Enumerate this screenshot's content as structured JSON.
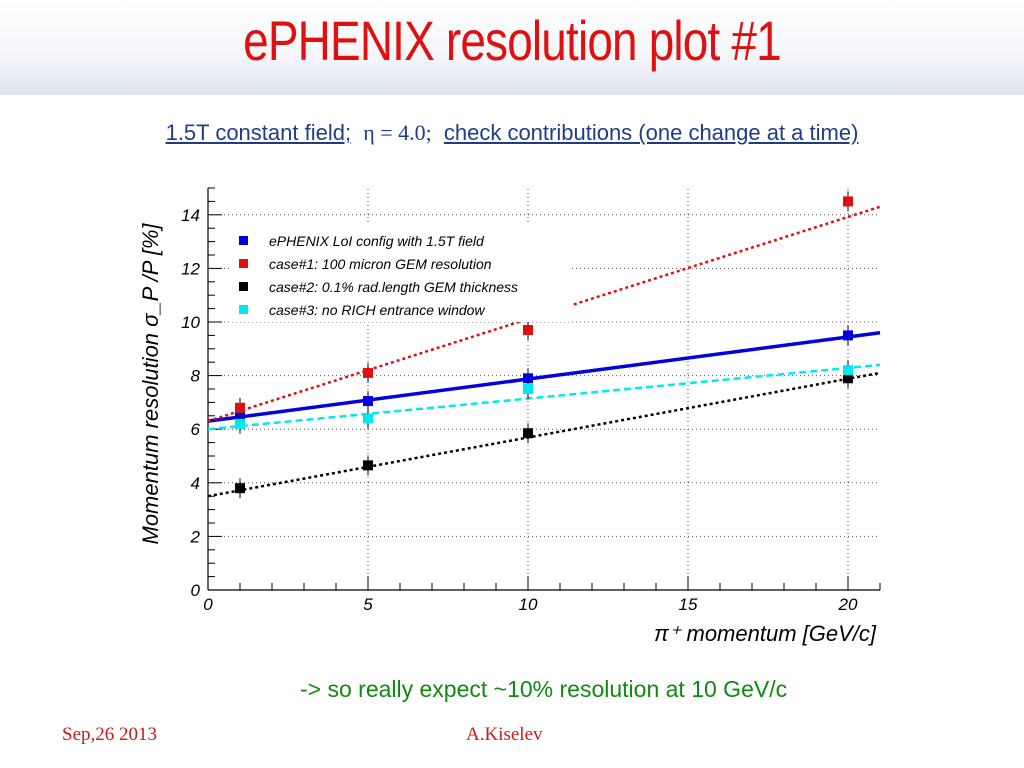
{
  "slide": {
    "title": "ePHENIX resolution plot #1",
    "subtitle_prefix": "1.5T constant field;",
    "subtitle_eta": "η = 4.0;",
    "subtitle_suffix": "check contributions (one change at a time)",
    "conclusion": "-> so really expect ~10% resolution at 10 GeV/c",
    "footer_date": "Sep,26 2013",
    "footer_author": "A.Kiselev"
  },
  "chart_data": {
    "type": "scatter",
    "title": "",
    "xlabel": "π⁺ momentum [GeV/c]",
    "ylabel": "Momentum resolution σ_P /P [%]",
    "xlim": [
      0,
      21
    ],
    "ylim": [
      0,
      15
    ],
    "x_ticks": [
      "0",
      "5",
      "10",
      "15",
      "20"
    ],
    "y_ticks": [
      "0",
      "2",
      "4",
      "6",
      "8",
      "10",
      "12",
      "14"
    ],
    "grid": "dotted",
    "legend_position": "top-left",
    "series": [
      {
        "name": "ePHENIX LoI config with 1.5T field",
        "color": "#0000e0",
        "line_style": "solid",
        "x": [
          1,
          5,
          10,
          20
        ],
        "y": [
          6.45,
          7.05,
          7.9,
          9.5
        ],
        "fit": [
          6.3,
          9.6
        ]
      },
      {
        "name": "case#1: 100 micron GEM resolution",
        "color": "#e01010",
        "line_style": "dotted",
        "x": [
          1,
          5,
          10,
          20
        ],
        "y": [
          6.8,
          8.1,
          9.7,
          14.5
        ],
        "fit": [
          6.3,
          14.3
        ]
      },
      {
        "name": "case#2: 0.1% rad.length GEM thickness",
        "color": "#000000",
        "line_style": "dotted",
        "x": [
          1,
          5,
          10,
          20
        ],
        "y": [
          3.8,
          4.65,
          5.85,
          7.9
        ],
        "fit": [
          3.5,
          8.1
        ]
      },
      {
        "name": "case#3: no RICH entrance window",
        "color": "#00e8f0",
        "line_style": "dashed",
        "x": [
          1,
          5,
          10,
          20
        ],
        "y": [
          6.2,
          6.4,
          7.5,
          8.2
        ],
        "fit": [
          6.0,
          8.4
        ]
      }
    ]
  }
}
